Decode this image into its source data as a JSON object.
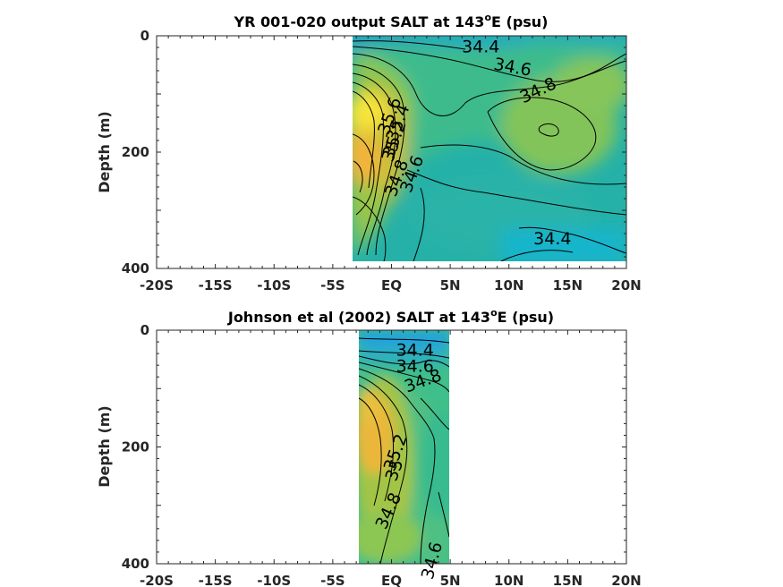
{
  "chart_data": [
    {
      "type": "contour",
      "title_prefix": "YR 001-020 output SALT at 143",
      "title_sup": "o",
      "title_suffix": "E (psu)",
      "xlabel": "",
      "ylabel": "Depth (m)",
      "x_ticks": [
        "-20S",
        "-15S",
        "-10S",
        "-5S",
        "EQ",
        "5N",
        "10N",
        "15N",
        "20N"
      ],
      "x_tick_values": [
        -20,
        -15,
        -10,
        -5,
        0,
        5,
        10,
        15,
        20
      ],
      "xlim": [
        -20,
        20
      ],
      "y_ticks": [
        "0",
        "200",
        "400"
      ],
      "y_tick_values": [
        0,
        200,
        400
      ],
      "ylim": [
        0,
        400
      ],
      "y_reversed": true,
      "data_extent": {
        "lat": [
          -3.2,
          20
        ],
        "depth": [
          0,
          385
        ]
      },
      "colormap": "parula",
      "contour_labels": [
        {
          "text": "34.4",
          "lat": 7.6,
          "depth": 20,
          "angle": 0
        },
        {
          "text": "34.6",
          "lat": 10.3,
          "depth": 55,
          "angle": 10
        },
        {
          "text": "34.8",
          "lat": 12.5,
          "depth": 95,
          "angle": -25
        },
        {
          "text": "35.6",
          "lat": -0.1,
          "depth": 138,
          "angle": -70
        },
        {
          "text": "35.4",
          "lat": 0.6,
          "depth": 150,
          "angle": -70
        },
        {
          "text": "35.2",
          "lat": 0.3,
          "depth": 178,
          "angle": -70
        },
        {
          "text": "35",
          "lat": 0.0,
          "depth": 198,
          "angle": -70
        },
        {
          "text": "34.8",
          "lat": 0.5,
          "depth": 245,
          "angle": -70
        },
        {
          "text": "34.6",
          "lat": 1.8,
          "depth": 238,
          "angle": -70
        },
        {
          "text": "34.4",
          "lat": 13.7,
          "depth": 350,
          "angle": 0
        }
      ]
    },
    {
      "type": "contour",
      "title_prefix": "Johnson et al (2002) SALT at 143",
      "title_sup": "o",
      "title_suffix": "E (psu)",
      "xlabel": "",
      "ylabel": "Depth (m)",
      "x_ticks": [
        "-20S",
        "-15S",
        "-10S",
        "-5S",
        "EQ",
        "5N",
        "10N",
        "15N",
        "20N"
      ],
      "x_tick_values": [
        -20,
        -15,
        -10,
        -5,
        0,
        5,
        10,
        15,
        20
      ],
      "xlim": [
        -20,
        20
      ],
      "y_ticks": [
        "0",
        "200",
        "400"
      ],
      "y_tick_values": [
        0,
        200,
        400
      ],
      "ylim": [
        0,
        400
      ],
      "y_reversed": true,
      "data_extent": {
        "lat": [
          -2.7,
          5
        ],
        "depth": [
          0,
          400
        ]
      },
      "colormap": "parula",
      "contour_labels": [
        {
          "text": "34.4",
          "lat": 2.0,
          "depth": 35,
          "angle": 0
        },
        {
          "text": "34.6",
          "lat": 2.0,
          "depth": 63,
          "angle": 0
        },
        {
          "text": "34.8",
          "lat": 2.7,
          "depth": 88,
          "angle": -20
        },
        {
          "text": "35.2",
          "lat": 0.4,
          "depth": 210,
          "angle": -70
        },
        {
          "text": "35",
          "lat": 0.3,
          "depth": 240,
          "angle": -70
        },
        {
          "text": "34.8",
          "lat": -0.2,
          "depth": 310,
          "angle": -65
        },
        {
          "text": "34.6",
          "lat": 3.5,
          "depth": 395,
          "angle": -75
        }
      ]
    }
  ]
}
